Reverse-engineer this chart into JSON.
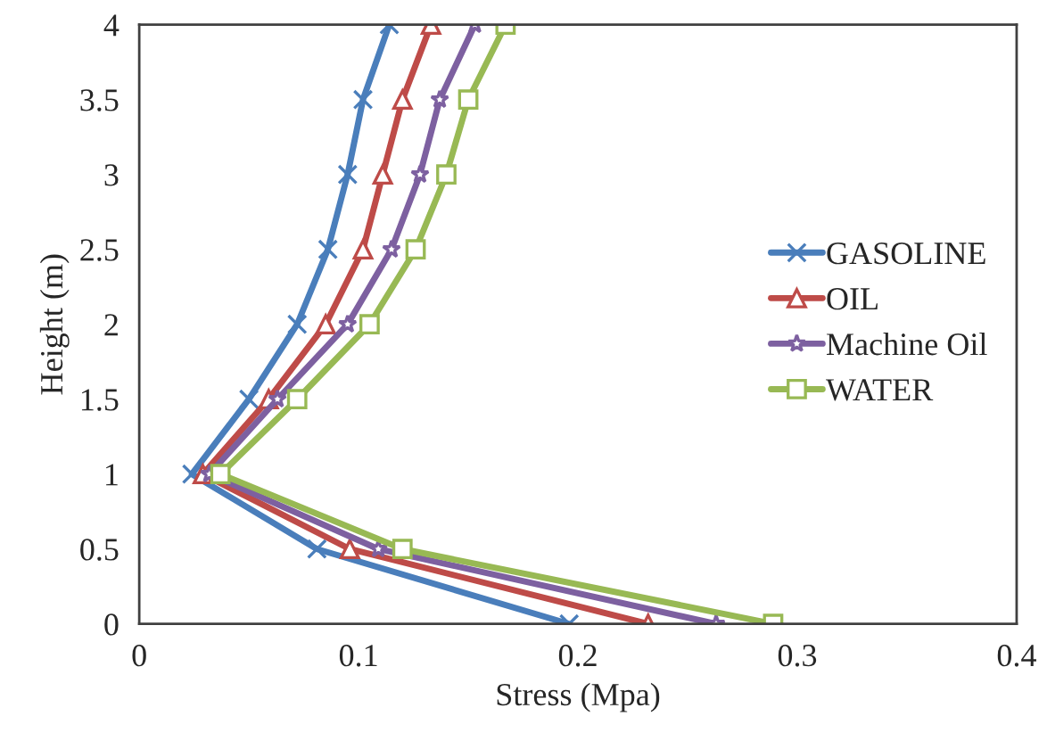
{
  "chart_data": {
    "type": "line",
    "xlabel": "Stress (Mpa)",
    "ylabel": "Height (m)",
    "xlim": [
      0,
      0.4
    ],
    "xticks": [
      0,
      0.1,
      0.2,
      0.3,
      0.4
    ],
    "ylim": [
      0,
      4
    ],
    "yticks": [
      0,
      0.5,
      1,
      1.5,
      2,
      2.5,
      3,
      3.5,
      4
    ],
    "grid": false,
    "legend": "right",
    "line_style": "solid",
    "series": [
      {
        "name": "GASOLINE",
        "color": "#4a7ebb",
        "marker": "cross",
        "x": [
          0.196,
          0.081,
          0.024,
          0.05,
          0.072,
          0.086,
          0.095,
          0.102,
          0.114
        ],
        "values": [
          0,
          0.5,
          1,
          1.5,
          2,
          2.5,
          3,
          3.5,
          4
        ]
      },
      {
        "name": "OIL",
        "color": "#be4b48",
        "marker": "triangle",
        "x": [
          0.232,
          0.096,
          0.029,
          0.059,
          0.085,
          0.102,
          0.111,
          0.12,
          0.133
        ],
        "values": [
          0,
          0.5,
          1,
          1.5,
          2,
          2.5,
          3,
          3.5,
          4
        ]
      },
      {
        "name": "Machine Oil",
        "color": "#7d60a0",
        "marker": "star",
        "x": [
          0.263,
          0.109,
          0.032,
          0.063,
          0.095,
          0.115,
          0.128,
          0.137,
          0.153
        ],
        "values": [
          0,
          0.5,
          1,
          1.5,
          2,
          2.5,
          3,
          3.5,
          4
        ]
      },
      {
        "name": "WATER",
        "color": "#98b954",
        "marker": "square",
        "x": [
          0.289,
          0.12,
          0.037,
          0.072,
          0.105,
          0.126,
          0.14,
          0.15,
          0.167
        ],
        "values": [
          0,
          0.5,
          1,
          1.5,
          2,
          2.5,
          3,
          3.5,
          4
        ]
      }
    ]
  }
}
